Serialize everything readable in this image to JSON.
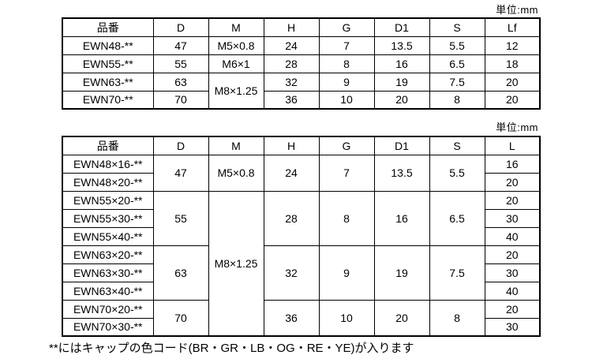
{
  "unit_label_top": "単位:mm",
  "unit_label_bottom": "単位:mm",
  "table1": {
    "headers": [
      "品番",
      "D",
      "M",
      "H",
      "G",
      "D1",
      "S",
      "Lf"
    ],
    "rows": [
      [
        "EWN48-**",
        "47",
        "M5×0.8",
        "24",
        "7",
        "13.5",
        "5.5",
        "12"
      ],
      [
        "EWN55-**",
        "55",
        "M6×1",
        "28",
        "8",
        "16",
        "6.5",
        "18"
      ],
      [
        "EWN63-**",
        "63",
        "M8×1.25",
        "32",
        "9",
        "19",
        "7.5",
        "20"
      ],
      [
        "EWN70-**",
        "70",
        "36",
        "10",
        "20",
        "8",
        "20"
      ]
    ]
  },
  "table2": {
    "headers": [
      "品番",
      "D",
      "M",
      "H",
      "G",
      "D1",
      "S",
      "L"
    ],
    "rows": [
      [
        "EWN48×16-**",
        "47",
        "M5×0.8",
        "24",
        "7",
        "13.5",
        "5.5",
        "16"
      ],
      [
        "EWN48×20-**",
        "20"
      ],
      [
        "EWN55×20-**",
        "55",
        "M8×1.25",
        "28",
        "8",
        "16",
        "6.5",
        "20"
      ],
      [
        "EWN55×30-**",
        "30"
      ],
      [
        "EWN55×40-**",
        "40"
      ],
      [
        "EWN63×20-**",
        "63",
        "32",
        "9",
        "19",
        "7.5",
        "20"
      ],
      [
        "EWN63×30-**",
        "30"
      ],
      [
        "EWN63×40-**",
        "40"
      ],
      [
        "EWN70×20-**",
        "70",
        "36",
        "10",
        "20",
        "8",
        "20"
      ],
      [
        "EWN70×30-**",
        "30"
      ]
    ]
  },
  "footer_note": "**にはキャップの色コード(BR・GR・LB・OG・RE・YE)が入ります"
}
